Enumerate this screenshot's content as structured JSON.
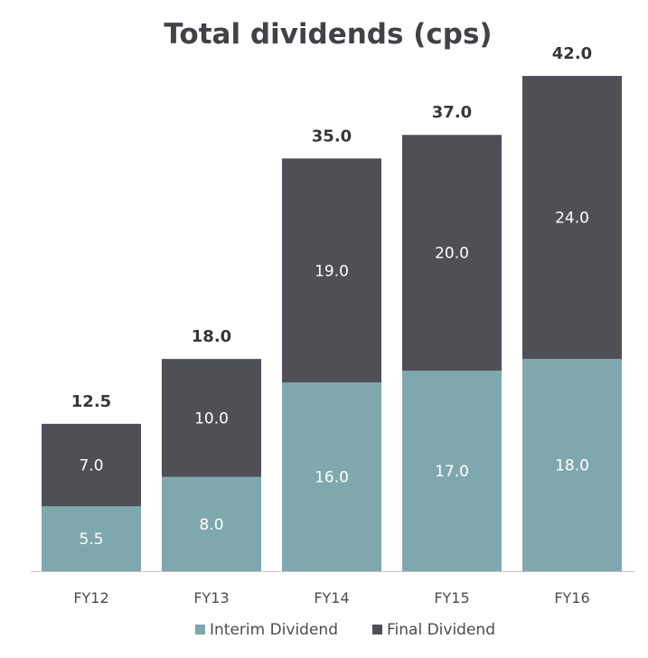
{
  "chart_data": {
    "type": "bar",
    "stacked": true,
    "title": "Total dividends (cps)",
    "xlabel": "",
    "ylabel": "",
    "categories": [
      "FY12",
      "FY13",
      "FY14",
      "FY15",
      "FY16"
    ],
    "series": [
      {
        "name": "Interim Dividend",
        "color": "#7ea8ad",
        "values": [
          5.5,
          8.0,
          16.0,
          17.0,
          18.0
        ],
        "labels": [
          "5.5",
          "8.0",
          "16.0",
          "17.0",
          "18.0"
        ]
      },
      {
        "name": "Final Dividend",
        "color": "#4e5055",
        "values": [
          7.0,
          10.0,
          19.0,
          20.0,
          24.0
        ],
        "labels": [
          "7.0",
          "10.0",
          "19.0",
          "20.0",
          "24.0"
        ]
      }
    ],
    "totals": [
      12.5,
      18.0,
      35.0,
      37.0,
      42.0
    ],
    "total_labels": [
      "12.5",
      "18.0",
      "35.0",
      "37.0",
      "42.0"
    ],
    "ylim": [
      0,
      42
    ],
    "grid": false,
    "legend_position": "bottom"
  }
}
